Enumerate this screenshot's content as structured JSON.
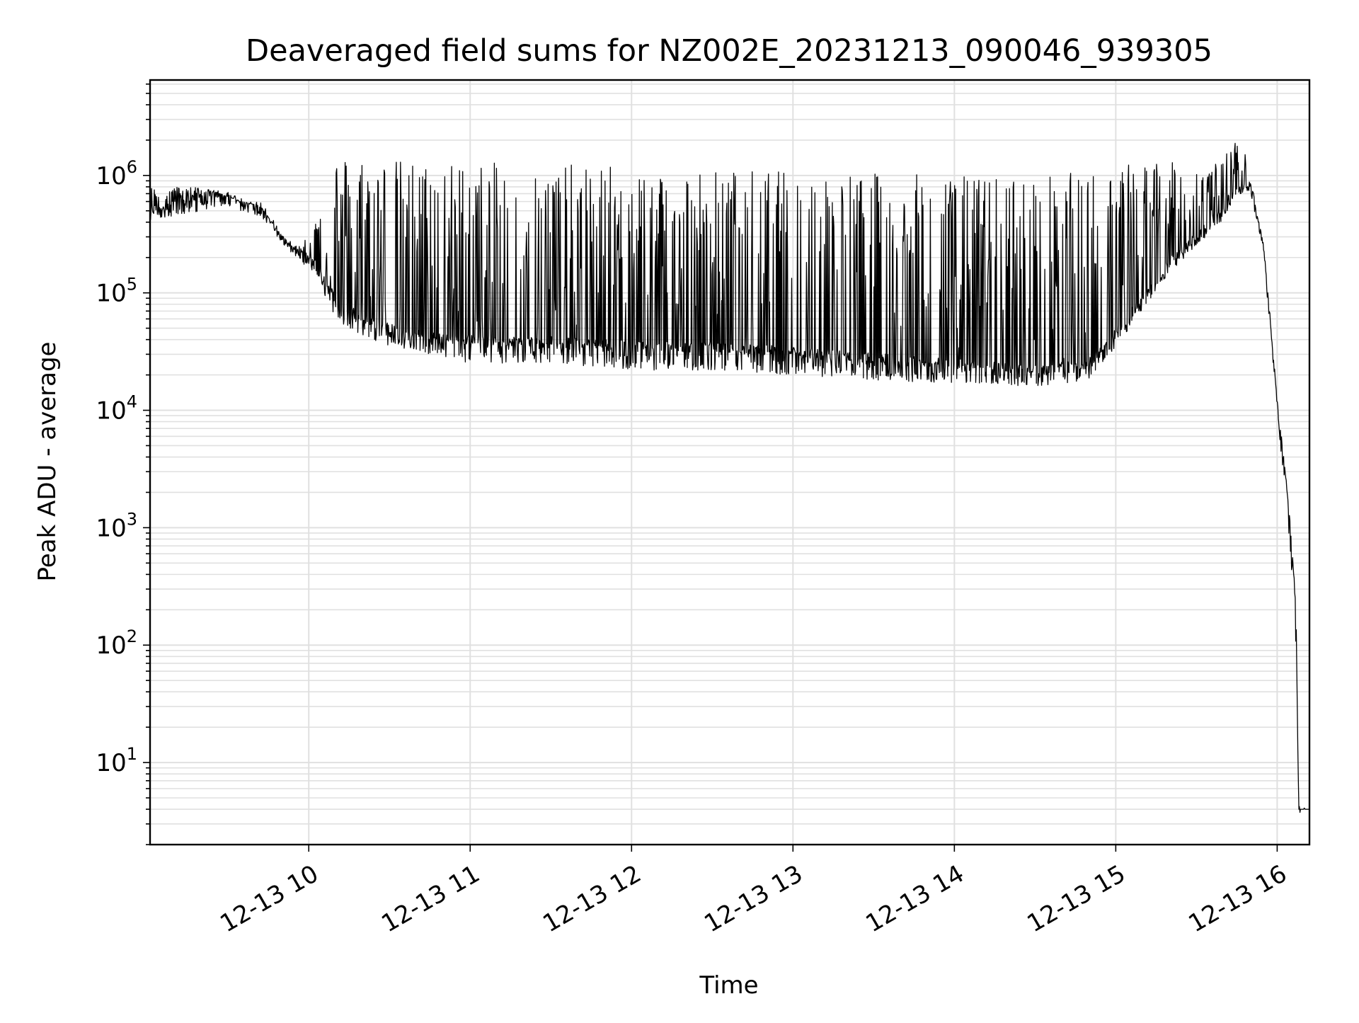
{
  "chart_data": {
    "type": "line",
    "title": "Deaveraged field sums for NZ002E_20231213_090046_939305",
    "xlabel": "Time",
    "ylabel": "Peak ADU - average",
    "yscale": "log",
    "grid": true,
    "line_color": "#000000",
    "grid_color": "#e0e0e0",
    "xlim": [
      "2023-12-13 09:01",
      "2023-12-13 16:12"
    ],
    "ylim": [
      2,
      6500000
    ],
    "x_ticks": [
      {
        "value": "2023-12-13 10:00",
        "label": "12-13 10"
      },
      {
        "value": "2023-12-13 11:00",
        "label": "12-13 11"
      },
      {
        "value": "2023-12-13 12:00",
        "label": "12-13 12"
      },
      {
        "value": "2023-12-13 13:00",
        "label": "12-13 13"
      },
      {
        "value": "2023-12-13 14:00",
        "label": "12-13 14"
      },
      {
        "value": "2023-12-13 15:00",
        "label": "12-13 15"
      },
      {
        "value": "2023-12-13 16:00",
        "label": "12-13 16"
      }
    ],
    "y_ticks": [
      {
        "value": 10,
        "base": "10",
        "exp": "1"
      },
      {
        "value": 100,
        "base": "10",
        "exp": "2"
      },
      {
        "value": 1000,
        "base": "10",
        "exp": "3"
      },
      {
        "value": 10000,
        "base": "10",
        "exp": "4"
      },
      {
        "value": 100000,
        "base": "10",
        "exp": "5"
      },
      {
        "value": 1000000,
        "base": "10",
        "exp": "6"
      }
    ],
    "series": [
      {
        "x": [
          "2023-12-13 09:01",
          "2023-12-13 09:10",
          "2023-12-13 09:20",
          "2023-12-13 09:27",
          "2023-12-13 09:35",
          "2023-12-13 09:42",
          "2023-12-13 09:48",
          "2023-12-13 09:55",
          "2023-12-13 10:02",
          "2023-12-13 10:10",
          "2023-12-13 10:20",
          "2023-12-13 10:30",
          "2023-12-13 10:45",
          "2023-12-13 11:00",
          "2023-12-13 11:30",
          "2023-12-13 12:00",
          "2023-12-13 12:30",
          "2023-12-13 13:00",
          "2023-12-13 13:30",
          "2023-12-13 14:00",
          "2023-12-13 14:30",
          "2023-12-13 14:50",
          "2023-12-13 15:00",
          "2023-12-13 15:10",
          "2023-12-13 15:20",
          "2023-12-13 15:30",
          "2023-12-13 15:40",
          "2023-12-13 15:46",
          "2023-12-13 15:50",
          "2023-12-13 15:55",
          "2023-12-13 15:58",
          "2023-12-13 16:00",
          "2023-12-13 16:02",
          "2023-12-13 16:05",
          "2023-12-13 16:07",
          "2023-12-13 16:08",
          "2023-12-13 16:12"
        ],
        "y": [
          500000,
          600000,
          650000,
          700000,
          600000,
          550000,
          350000,
          230000,
          180000,
          90000,
          60000,
          50000,
          42000,
          40000,
          38000,
          36000,
          34000,
          32000,
          28000,
          25000,
          22000,
          25000,
          45000,
          90000,
          180000,
          300000,
          500000,
          800000,
          800000,
          250000,
          40000,
          12000,
          5000,
          1000,
          200,
          4,
          4
        ],
        "upper_envelope_y": [
          800000,
          800000,
          800000,
          700000,
          600000,
          550000,
          350000,
          230000,
          400000,
          1500000,
          1500000,
          1400000,
          1300000,
          1300000,
          1250000,
          1200000,
          1150000,
          1100000,
          1050000,
          1000000,
          1000000,
          1100000,
          1200000,
          1400000,
          1300000,
          1200000,
          1300000,
          3200000,
          1000000,
          250000,
          40000,
          12000,
          5000,
          1000,
          200,
          4,
          4
        ],
        "lower_envelope_y": [
          420000,
          450000,
          500000,
          550000,
          500000,
          450000,
          300000,
          200000,
          150000,
          60000,
          40000,
          35000,
          30000,
          25000,
          25000,
          22000,
          22000,
          20000,
          18000,
          17000,
          16000,
          18000,
          35000,
          70000,
          150000,
          250000,
          420000,
          700000,
          700000,
          220000,
          30000,
          9000,
          3000,
          600,
          60,
          4,
          4
        ]
      }
    ]
  }
}
